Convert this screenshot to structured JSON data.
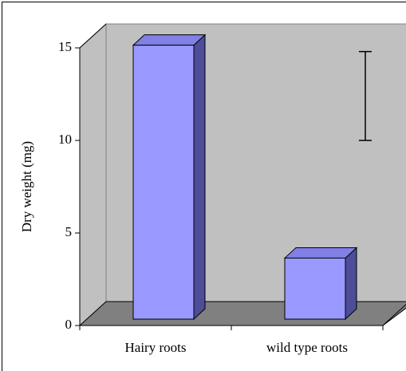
{
  "chart_data": {
    "type": "bar3d",
    "y_label": "Dry weight (mg)",
    "categories": [
      "Hairy roots",
      "wild type roots"
    ],
    "values": [
      14.8,
      3.3
    ],
    "color": "#9999ff",
    "ylim": [
      0,
      15
    ],
    "yticks": [
      0,
      5,
      10,
      15
    ],
    "error_bar": [
      10,
      14.8
    ]
  }
}
